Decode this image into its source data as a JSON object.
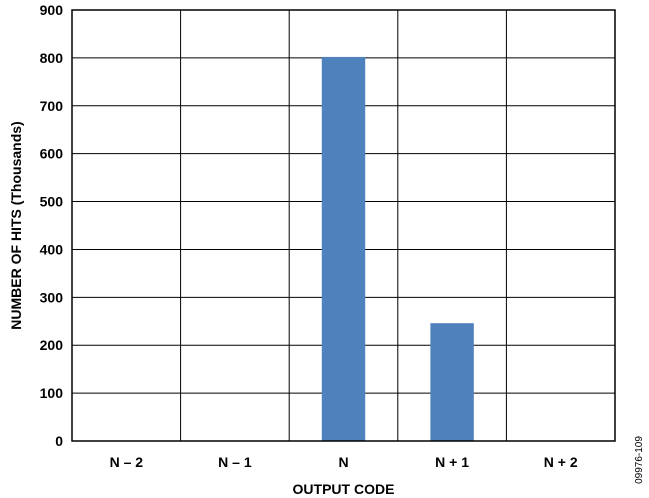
{
  "chart_data": {
    "type": "bar",
    "categories": [
      "N – 2",
      "N – 1",
      "N",
      "N + 1",
      "N + 2"
    ],
    "values": [
      0,
      0,
      802,
      246,
      0
    ],
    "xlabel": "OUTPUT CODE",
    "ylabel": "NUMBER OF HITS (Thousands)",
    "ylim": [
      0,
      900
    ],
    "yticks": [
      0,
      100,
      200,
      300,
      400,
      500,
      600,
      700,
      800,
      900
    ],
    "grid": true,
    "legend": "none",
    "bar_color": "#4F81BD"
  },
  "figure_id": "09976-109"
}
